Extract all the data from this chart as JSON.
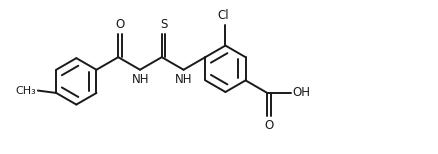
{
  "bg_color": "#ffffff",
  "line_color": "#1a1a1a",
  "line_width": 1.4,
  "font_size": 8.5,
  "figsize": [
    4.38,
    1.54
  ],
  "dpi": 100,
  "ring_r": 0.48,
  "xlim": [
    0,
    9.0
  ],
  "ylim": [
    0,
    3.08
  ]
}
